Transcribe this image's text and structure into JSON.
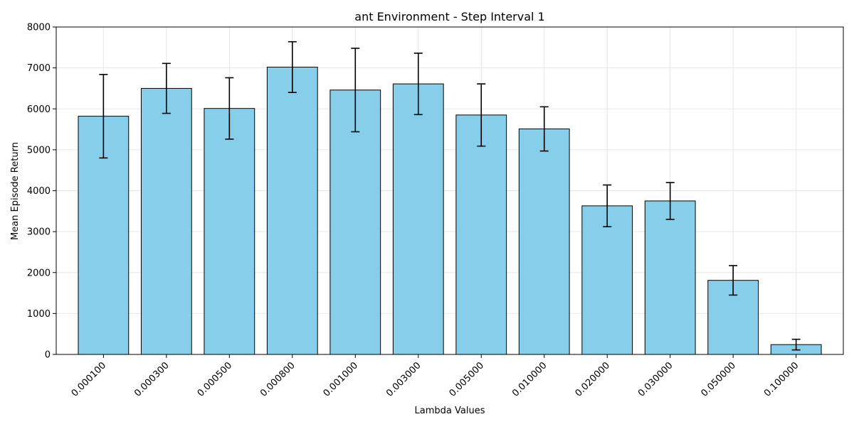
{
  "chart_data": {
    "type": "bar",
    "title": "ant Environment - Step Interval 1",
    "xlabel": "Lambda Values",
    "ylabel": "Mean Episode Return",
    "categories": [
      "0.000100",
      "0.000300",
      "0.000500",
      "0.000800",
      "0.001000",
      "0.003000",
      "0.005000",
      "0.010000",
      "0.020000",
      "0.030000",
      "0.050000",
      "0.100000"
    ],
    "values": [
      5820,
      6500,
      6010,
      7020,
      6460,
      6610,
      5850,
      5510,
      3630,
      3750,
      1810,
      240
    ],
    "errors": [
      1020,
      610,
      750,
      620,
      1020,
      750,
      760,
      540,
      510,
      450,
      360,
      130
    ],
    "ylim": [
      0,
      8000
    ],
    "yticks": [
      0,
      1000,
      2000,
      3000,
      4000,
      5000,
      6000,
      7000,
      8000
    ],
    "grid": true,
    "colors": {
      "bar_fill": "#87ceeb",
      "bar_edge": "#000000",
      "grid": "#e6e6e6",
      "error": "#000000"
    }
  }
}
